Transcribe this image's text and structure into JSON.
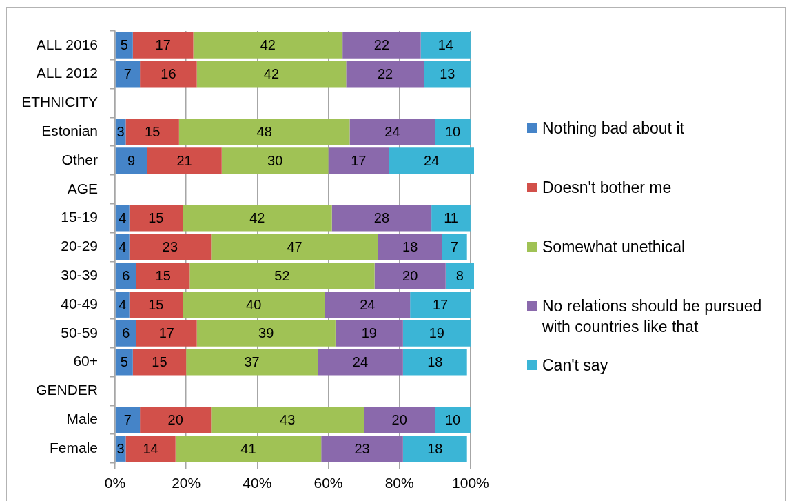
{
  "chart_data": {
    "type": "bar",
    "orientation": "horizontal",
    "stacked": true,
    "categories": [
      "ALL 2016",
      "ALL 2012",
      "ETHNICITY",
      "Estonian",
      "Other",
      "AGE",
      "15-19",
      "20-29",
      "30-39",
      "40-49",
      "50-59",
      "60+",
      "GENDER",
      "Male",
      "Female"
    ],
    "series": [
      {
        "name": "Nothing bad about it",
        "color": "#4584c8",
        "values": [
          5,
          7,
          null,
          3,
          9,
          null,
          4,
          4,
          6,
          4,
          6,
          5,
          null,
          7,
          3
        ]
      },
      {
        "name": "Doesn't bother me",
        "color": "#d2504a",
        "values": [
          17,
          16,
          null,
          15,
          21,
          null,
          15,
          23,
          15,
          15,
          17,
          15,
          null,
          20,
          14
        ]
      },
      {
        "name": "Somewhat unethical",
        "color": "#a0c255",
        "values": [
          42,
          42,
          null,
          48,
          30,
          null,
          42,
          47,
          52,
          40,
          39,
          37,
          null,
          43,
          41
        ]
      },
      {
        "name": "No relations should be pursued with countries like that",
        "color": "#8a69ac",
        "values": [
          22,
          22,
          null,
          24,
          17,
          null,
          28,
          18,
          20,
          24,
          19,
          24,
          null,
          20,
          23
        ]
      },
      {
        "name": "Can't say",
        "color": "#3bb5d6",
        "values": [
          14,
          13,
          null,
          10,
          24,
          null,
          11,
          7,
          8,
          17,
          19,
          18,
          null,
          10,
          18
        ]
      }
    ],
    "xlim": [
      0,
      101
    ],
    "xticks": [
      {
        "value": 0,
        "label": "0%"
      },
      {
        "value": 20,
        "label": "20%"
      },
      {
        "value": 40,
        "label": "40%"
      },
      {
        "value": 60,
        "label": "60%"
      },
      {
        "value": 80,
        "label": "80%"
      },
      {
        "value": 100,
        "label": "100%"
      }
    ],
    "grid": "x",
    "legend": "right",
    "data_labels": true
  }
}
